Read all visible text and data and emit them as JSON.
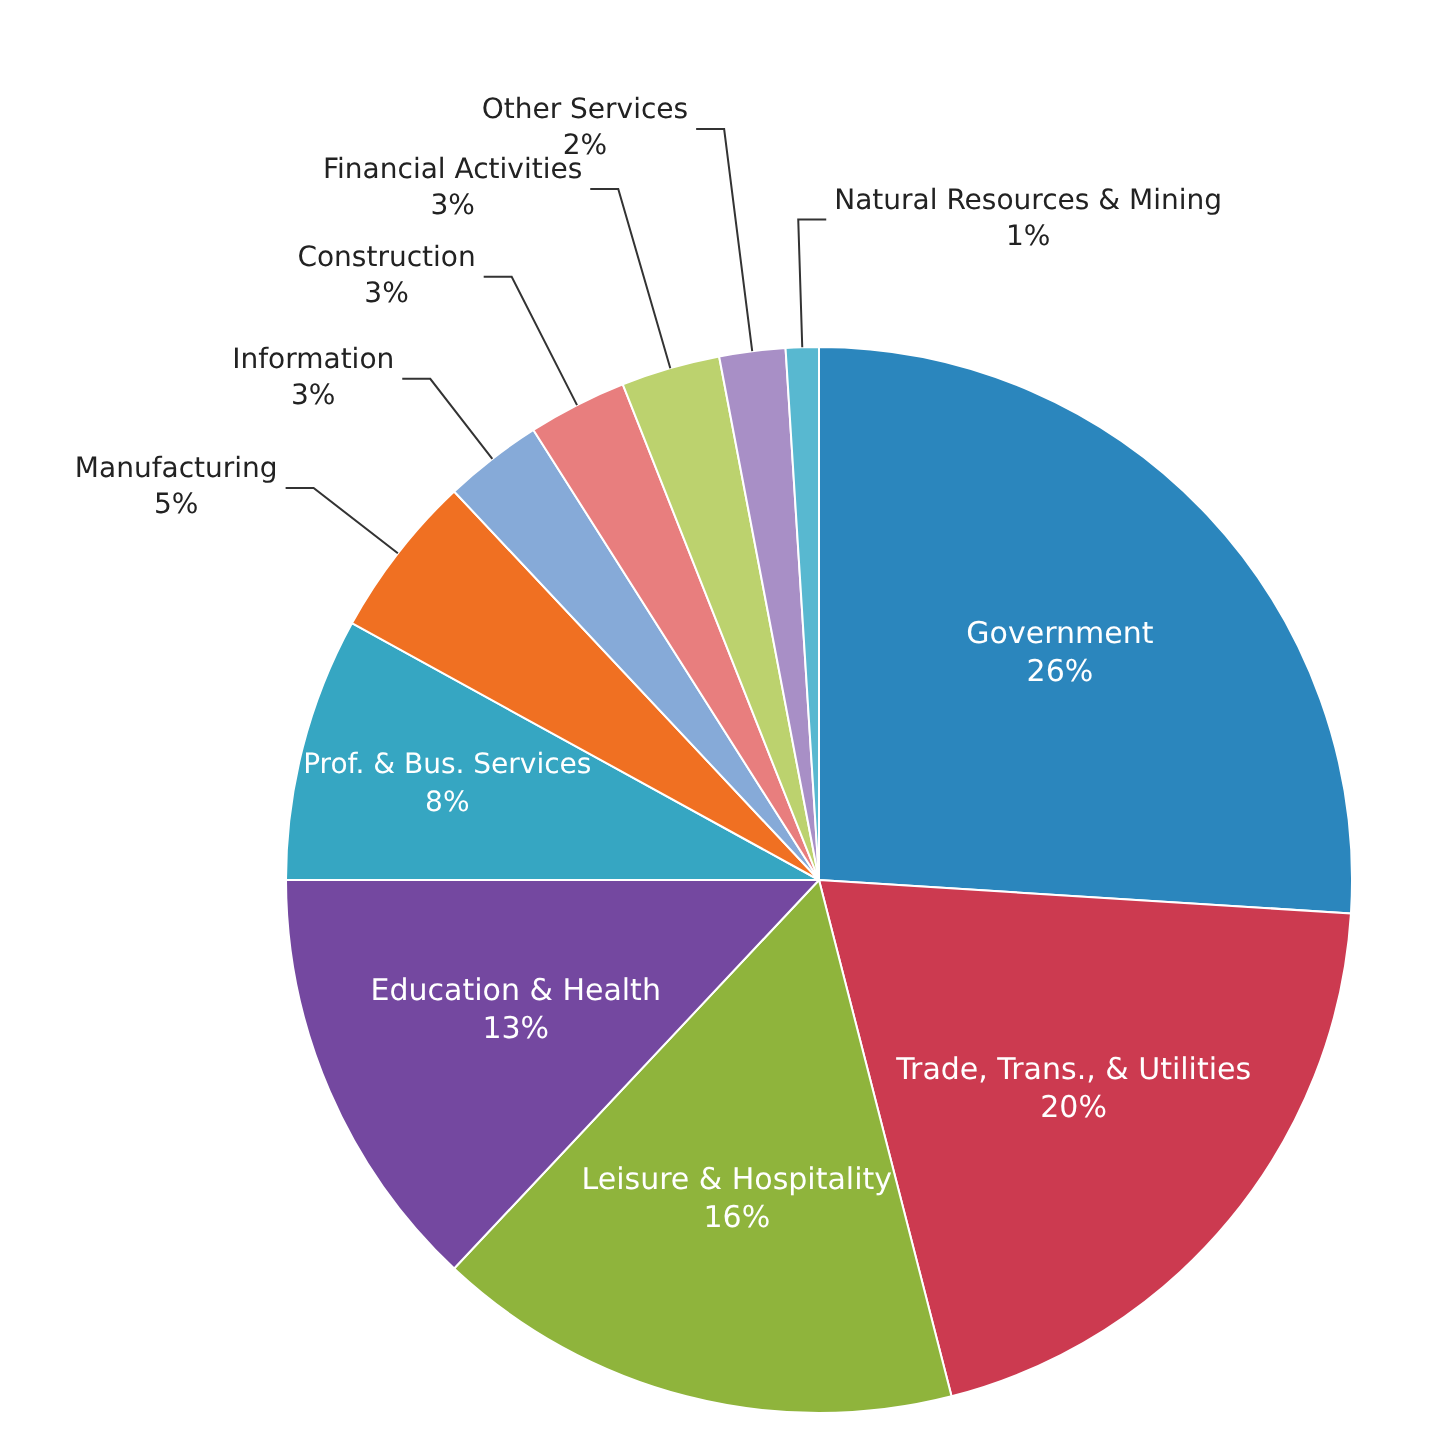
{
  "chart_data": {
    "type": "pie",
    "categories": [
      "Government",
      "Trade, Trans., & Utilities",
      "Leisure & Hospitality",
      "Education & Health",
      "Prof. & Bus. Services",
      "Manufacturing",
      "Information",
      "Construction",
      "Financial Activities",
      "Other Services",
      "Natural Resources & Mining"
    ],
    "values": [
      26,
      20,
      16,
      13,
      8,
      5,
      3,
      3,
      3,
      2,
      1
    ],
    "value_labels": [
      "26%",
      "20%",
      "16%",
      "13%",
      "8%",
      "5%",
      "3%",
      "3%",
      "3%",
      "2%",
      "1%"
    ],
    "colors": [
      "#2b86bd",
      "#cc3a50",
      "#8fb43c",
      "#7448a0",
      "#36a6c2",
      "#f07022",
      "#86aad8",
      "#e87e7e",
      "#bcd26e",
      "#a88fc6",
      "#58b8d0"
    ],
    "legend": false
  }
}
